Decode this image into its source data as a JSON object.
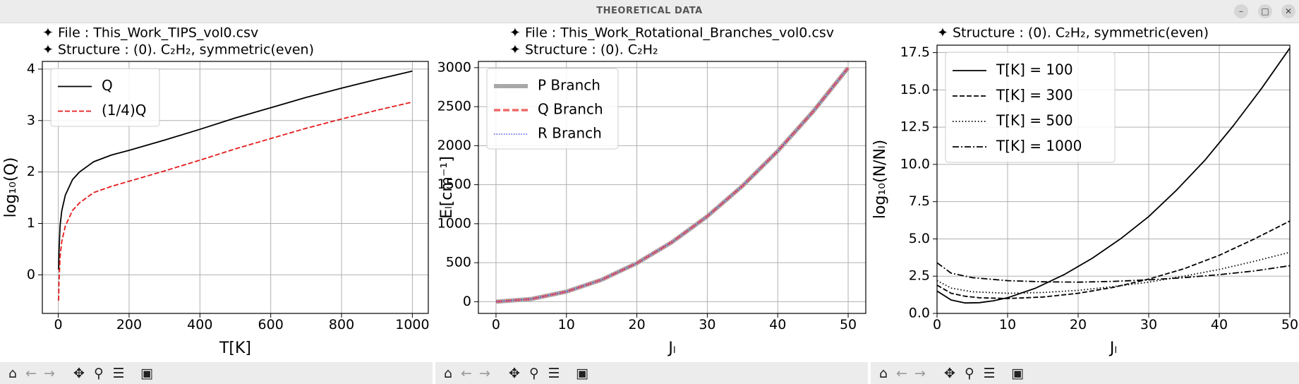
{
  "window": {
    "title": "THEORETICAL DATA"
  },
  "toolbar_icons": [
    "home-icon",
    "back-arrow-icon",
    "forward-arrow-icon",
    "pan-icon",
    "zoom-icon",
    "configure-icon",
    "save-icon"
  ],
  "colors": {
    "black": "#000000",
    "red": "#e41a1c",
    "gray": "#a8a8a8",
    "lightred": "#f06a6a",
    "blue": "#2a2ad8",
    "grid": "#b0b0b0"
  },
  "chart_data": [
    {
      "type": "line",
      "header_lines": [
        "✦ File : This_Work_TIPS_vol0.csv",
        "✦ Structure : (0). C₂H₂, symmetric(even)"
      ],
      "xlabel": "T[K]",
      "ylabel": "log₁₀(Q)",
      "xlim": [
        -45,
        1045
      ],
      "ylim": [
        -0.75,
        4.15
      ],
      "xticks": [
        0,
        200,
        400,
        600,
        800,
        1000
      ],
      "yticks": [
        0,
        1,
        2,
        3,
        4
      ],
      "grid": true,
      "legend_position": "upper-left",
      "series": [
        {
          "name": "Q",
          "style": "solid",
          "x": [
            1,
            2,
            5,
            10,
            20,
            40,
            60,
            100,
            150,
            200,
            300,
            400,
            500,
            600,
            700,
            800,
            900,
            1000
          ],
          "y": [
            0.1,
            0.45,
            0.95,
            1.25,
            1.55,
            1.85,
            2.0,
            2.2,
            2.33,
            2.42,
            2.62,
            2.83,
            3.05,
            3.25,
            3.45,
            3.63,
            3.8,
            3.96
          ]
        },
        {
          "name": "(1/4)Q",
          "style": "dashed",
          "x": [
            1,
            2,
            5,
            10,
            20,
            40,
            60,
            100,
            150,
            200,
            300,
            400,
            500,
            600,
            700,
            800,
            900,
            1000
          ],
          "y": [
            -0.5,
            -0.15,
            0.35,
            0.65,
            0.95,
            1.25,
            1.4,
            1.6,
            1.72,
            1.82,
            2.02,
            2.23,
            2.45,
            2.65,
            2.85,
            3.03,
            3.2,
            3.36
          ]
        }
      ]
    },
    {
      "type": "line",
      "header_lines": [
        "✦ File : This_Work_Rotational_Branches_vol0.csv",
        "✦ Structure : (0). C₂H₂"
      ],
      "xlabel": "Jₗ",
      "ylabel": "Eₗ[cm⁻¹]",
      "xlim": [
        -2.5,
        52.5
      ],
      "ylim": [
        -150,
        3080
      ],
      "xticks": [
        0,
        10,
        20,
        30,
        40,
        50
      ],
      "yticks": [
        0,
        500,
        1000,
        1500,
        2000,
        2500,
        3000
      ],
      "grid": true,
      "legend_position": "upper-left",
      "series": [
        {
          "name": "P  Branch",
          "style": "thick-gray",
          "x": [
            0,
            5,
            10,
            15,
            20,
            25,
            30,
            35,
            40,
            45,
            50
          ],
          "y": [
            0,
            35,
            130,
            282,
            494,
            765,
            1095,
            1484,
            1931,
            2435,
            2998
          ]
        },
        {
          "name": "Q  Branch",
          "style": "dashed-red",
          "x": [
            0,
            5,
            10,
            15,
            20,
            25,
            30,
            35,
            40,
            45,
            50
          ],
          "y": [
            0,
            35,
            130,
            282,
            494,
            765,
            1095,
            1484,
            1931,
            2435,
            2998
          ]
        },
        {
          "name": "R  Branch",
          "style": "dotted-blue",
          "x": [
            0,
            5,
            10,
            15,
            20,
            25,
            30,
            35,
            40,
            45,
            50
          ],
          "y": [
            0,
            35,
            130,
            282,
            494,
            765,
            1095,
            1484,
            1931,
            2435,
            2998
          ]
        }
      ]
    },
    {
      "type": "line",
      "header_lines": [
        "✦ Structure : (0). C₂H₂, symmetric(even)"
      ],
      "xlabel": "Jₗ",
      "ylabel": "log₁₀(N/Nₗ)",
      "xlim": [
        0,
        50
      ],
      "ylim": [
        0,
        18
      ],
      "xticks": [
        0,
        10,
        20,
        30,
        40,
        50
      ],
      "yticks": [
        "0.0",
        "2.5",
        "5.0",
        "7.5",
        "10.0",
        "12.5",
        "15.0",
        "17.5"
      ],
      "grid": true,
      "legend_position": "upper-left",
      "series": [
        {
          "name": "T[K] = 100",
          "style": "solid",
          "x": [
            0,
            2,
            4,
            6,
            8,
            10,
            14,
            18,
            22,
            26,
            30,
            34,
            38,
            42,
            46,
            50
          ],
          "y": [
            1.5,
            0.9,
            0.7,
            0.72,
            0.85,
            1.05,
            1.7,
            2.6,
            3.7,
            5.0,
            6.5,
            8.3,
            10.3,
            12.6,
            15.1,
            17.8
          ]
        },
        {
          "name": "T[K] = 300",
          "style": "dashed",
          "x": [
            0,
            2,
            4,
            6,
            10,
            15,
            20,
            25,
            30,
            35,
            40,
            45,
            50
          ],
          "y": [
            1.9,
            1.35,
            1.15,
            1.05,
            1.0,
            1.1,
            1.35,
            1.75,
            2.3,
            3.0,
            3.9,
            5.0,
            6.2
          ]
        },
        {
          "name": "T[K] = 500",
          "style": "dotted",
          "x": [
            0,
            2,
            5,
            10,
            15,
            20,
            25,
            30,
            35,
            40,
            45,
            50
          ],
          "y": [
            2.2,
            1.7,
            1.45,
            1.35,
            1.4,
            1.55,
            1.8,
            2.1,
            2.5,
            2.95,
            3.5,
            4.1
          ]
        },
        {
          "name": "T[K] = 1000",
          "style": "dashdot",
          "x": [
            0,
            2,
            5,
            10,
            15,
            20,
            25,
            30,
            35,
            40,
            45,
            50
          ],
          "y": [
            3.4,
            2.7,
            2.4,
            2.2,
            2.12,
            2.1,
            2.15,
            2.25,
            2.4,
            2.6,
            2.85,
            3.2
          ]
        }
      ]
    }
  ]
}
